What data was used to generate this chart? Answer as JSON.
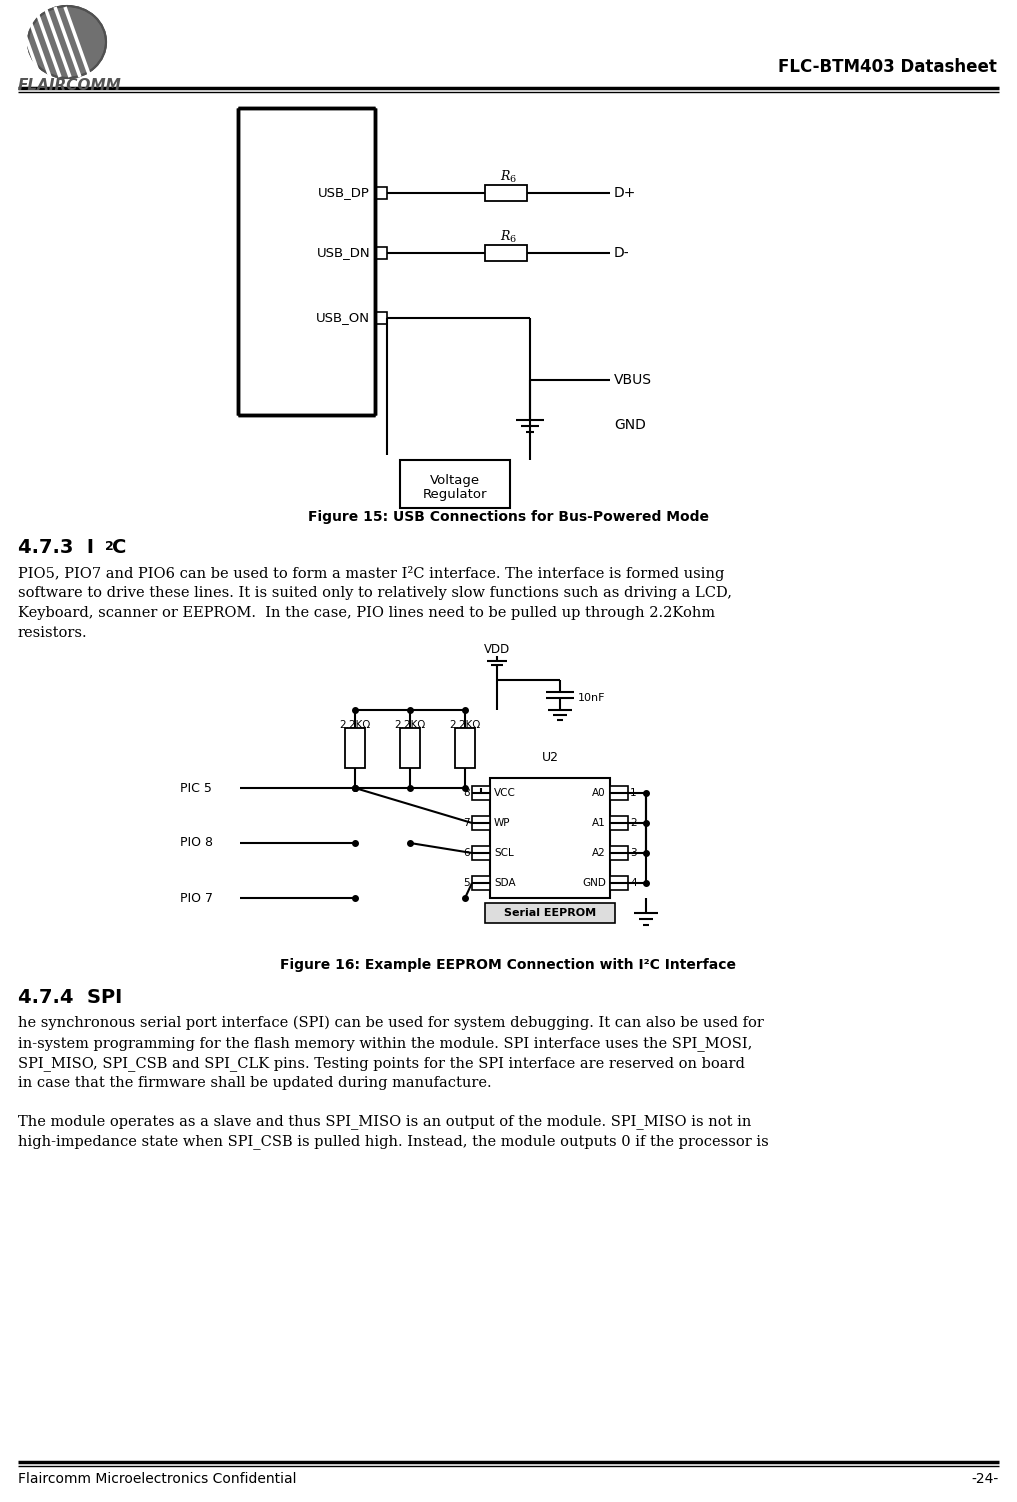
{
  "page_title": "FLC-BTM403 Datasheet",
  "footer_left": "Flaircomm Microelectronics Confidential",
  "footer_right": "-24-",
  "fig15_caption": "Figure 15: USB Connections for Bus-Powered Mode",
  "fig16_caption": "Figure 16: Example EEPROM Connection with I²C Interface",
  "section_473_head": "4.7.3  I",
  "section_473_super": "2",
  "section_473_tail": "C",
  "section_473_body": "PIO5, PIO7 and PIO6 can be used to form a master I²C interface. The interface is formed using\nsoftware to drive these lines. It is suited only to relatively slow functions such as driving a LCD,\nKeyboard, scanner or EEPROM.  In the case, PIO lines need to be pulled up through 2.2Kohm\nresistors.",
  "section_474_title": "4.7.4  SPI",
  "section_474_body": "he synchronous serial port interface (SPI) can be used for system debugging. It can also be used for\nin-system programming for the flash memory within the module. SPI interface uses the SPI_MOSI,\nSPI_MISO, SPI_CSB and SPI_CLK pins. Testing points for the SPI interface are reserved on board\nin case that the firmware shall be updated during manufacture.",
  "section_474_body2": "The module operates as a slave and thus SPI_MISO is an output of the module. SPI_MISO is not in\nhigh-impedance state when SPI_CSB is pulled high. Instead, the module outputs 0 if the processor is",
  "bg_color": "#ffffff",
  "text_color": "#000000"
}
